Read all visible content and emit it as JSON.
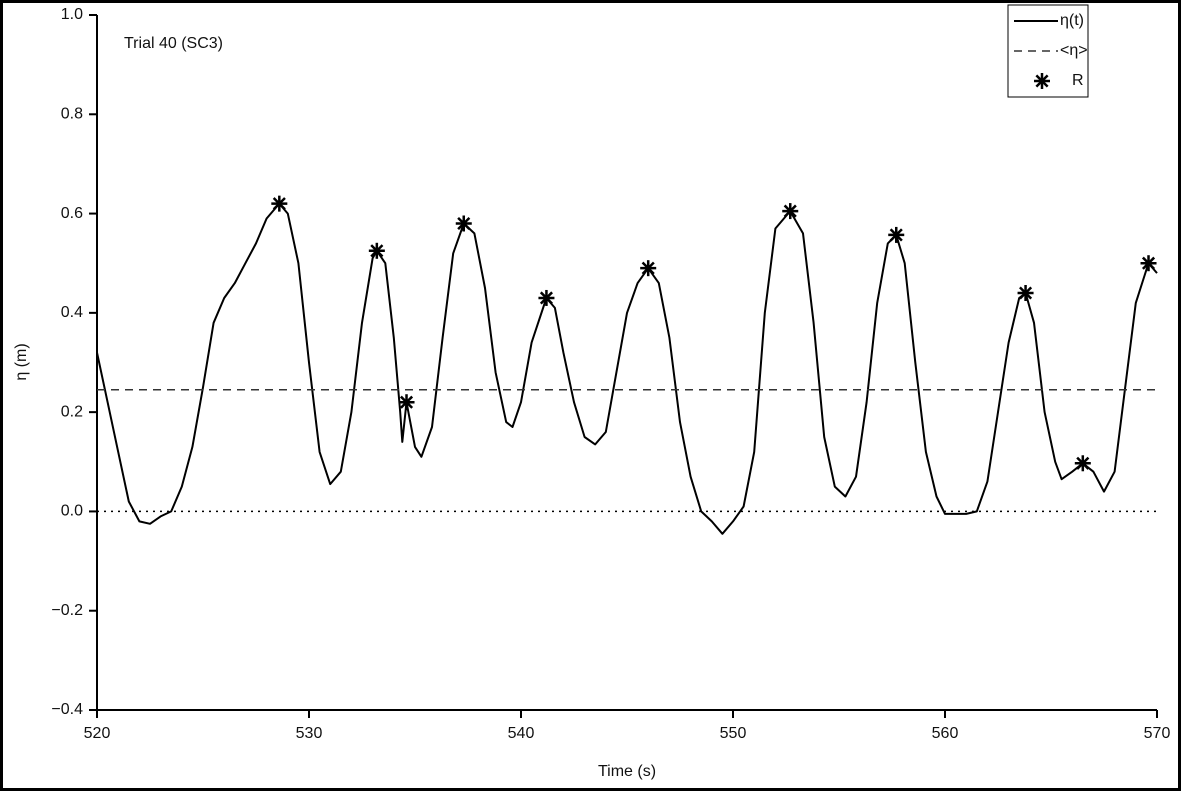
{
  "chart_data": {
    "type": "line",
    "annotation": "Trial 40 (SC3)",
    "x_label": "Time (s)",
    "y_label": "η (m)",
    "xlim": [
      520,
      570
    ],
    "xticks": [
      520,
      530,
      540,
      550,
      560,
      570
    ],
    "ylim": [
      -0.4,
      1.0
    ],
    "yticks": [
      {
        "value": -0.4,
        "label": "−0.4"
      },
      {
        "value": -0.2,
        "label": "−0.2"
      },
      {
        "value": 0,
        "label": "0.0"
      },
      {
        "value": 0.2,
        "label": "0.2"
      },
      {
        "value": 0.4,
        "label": "0.4"
      },
      {
        "value": 0.6,
        "label": "0.6"
      },
      {
        "value": 0.8,
        "label": "0.8"
      },
      {
        "value": 1.0,
        "label": "1.0"
      }
    ],
    "legend": "top-right",
    "series": [
      {
        "name": "η(t)",
        "kind": "line",
        "color": "#000000",
        "x": [
          520,
          520.5,
          521,
          521.5,
          522,
          522.5,
          523,
          523.5,
          524,
          524.5,
          525,
          525.5,
          526,
          526.5,
          527,
          527.5,
          528,
          528.6,
          529,
          529.5,
          530,
          530.5,
          531,
          531.5,
          532,
          532.5,
          533,
          533.2,
          533.6,
          534,
          534.3,
          534.4,
          534.6,
          535,
          535.3,
          535.8,
          536.3,
          536.8,
          537.3,
          537.8,
          538.3,
          538.8,
          539.3,
          539.6,
          540,
          540.5,
          541.2,
          541.6,
          542,
          542.5,
          543,
          543.5,
          544,
          544.5,
          545,
          545.5,
          546,
          546.5,
          547,
          547.5,
          548,
          548.5,
          549,
          549.5,
          550,
          550.5,
          551,
          551.5,
          552,
          552.7,
          553.3,
          553.8,
          554.3,
          554.8,
          555.3,
          555.8,
          556.3,
          556.8,
          557.3,
          557.7,
          558.1,
          558.6,
          559.1,
          559.6,
          560,
          560.5,
          561,
          561.5,
          562,
          562.5,
          563,
          563.5,
          563.8,
          564.2,
          564.7,
          565.2,
          565.5,
          566,
          566.5,
          567,
          567.5,
          568,
          568.5,
          569,
          569.6,
          570
        ],
        "values": [
          0.32,
          0.22,
          0.12,
          0.02,
          -0.02,
          -0.025,
          -0.01,
          0.0,
          0.05,
          0.13,
          0.25,
          0.38,
          0.43,
          0.46,
          0.5,
          0.54,
          0.59,
          0.62,
          0.6,
          0.5,
          0.3,
          0.12,
          0.055,
          0.08,
          0.2,
          0.38,
          0.51,
          0.525,
          0.5,
          0.35,
          0.2,
          0.14,
          0.22,
          0.13,
          0.11,
          0.17,
          0.35,
          0.52,
          0.58,
          0.56,
          0.45,
          0.28,
          0.18,
          0.17,
          0.22,
          0.34,
          0.43,
          0.41,
          0.32,
          0.22,
          0.15,
          0.135,
          0.16,
          0.28,
          0.4,
          0.46,
          0.49,
          0.46,
          0.35,
          0.18,
          0.07,
          0.0,
          -0.02,
          -0.045,
          -0.02,
          0.01,
          0.12,
          0.4,
          0.57,
          0.605,
          0.56,
          0.38,
          0.15,
          0.05,
          0.03,
          0.07,
          0.22,
          0.42,
          0.54,
          0.557,
          0.5,
          0.3,
          0.12,
          0.03,
          -0.005,
          -0.005,
          -0.005,
          0.0,
          0.06,
          0.2,
          0.34,
          0.43,
          0.44,
          0.38,
          0.2,
          0.1,
          0.065,
          0.08,
          0.097,
          0.08,
          0.04,
          0.08,
          0.25,
          0.42,
          0.5,
          0.48
        ]
      },
      {
        "name": "<η>",
        "kind": "hline",
        "style": "dashed",
        "color": "#333333",
        "value": 0.245
      },
      {
        "name": "R",
        "kind": "scatter",
        "color": "#000000",
        "x": [
          528.6,
          533.2,
          534.6,
          537.3,
          541.2,
          546.0,
          552.7,
          557.7,
          563.8,
          566.5,
          569.6
        ],
        "values": [
          0.62,
          0.525,
          0.22,
          0.58,
          0.43,
          0.49,
          0.605,
          0.557,
          0.44,
          0.097,
          0.5
        ]
      }
    ],
    "reference_line": {
      "kind": "hline",
      "style": "dotted",
      "color": "#000000",
      "value": 0
    }
  }
}
